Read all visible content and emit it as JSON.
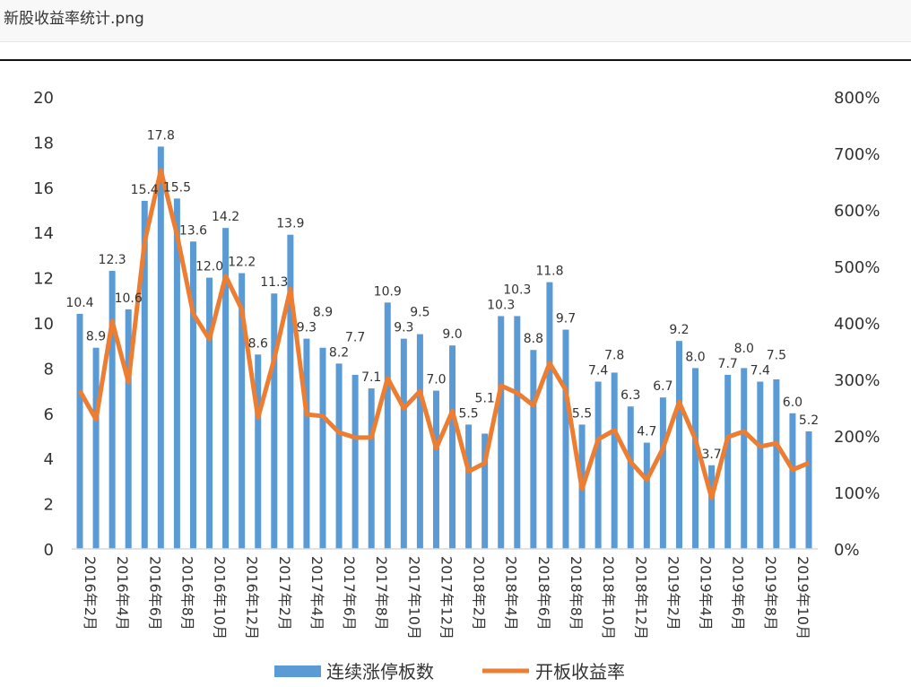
{
  "viewer": {
    "filename": "新股收益率统计.png"
  },
  "chart_data": {
    "type": "bar+line",
    "categories": [
      "2016年2月",
      "2016年3月",
      "2016年4月",
      "2016年5月",
      "2016年6月",
      "2016年7月",
      "2016年8月",
      "2016年9月",
      "2016年10月",
      "2016年11月",
      "2016年12月",
      "2017年1月",
      "2017年2月",
      "2017年3月",
      "2017年4月",
      "2017年5月",
      "2017年6月",
      "2017年7月",
      "2017年8月",
      "2017年9月",
      "2017年10月",
      "2017年11月",
      "2017年12月",
      "2018年1月",
      "2018年2月",
      "2018年3月",
      "2018年4月",
      "2018年5月",
      "2018年6月",
      "2018年7月",
      "2018年8月",
      "2018年9月",
      "2018年10月",
      "2018年11月",
      "2018年12月",
      "2019年1月",
      "2019年2月",
      "2019年3月",
      "2019年4月",
      "2019年5月",
      "2019年6月",
      "2019年7月",
      "2019年8月",
      "2019年9月",
      "2019年10月",
      "2019年11月"
    ],
    "tick_labels": [
      "2016年2月",
      "2016年4月",
      "2016年6月",
      "2016年8月",
      "2016年10月",
      "2016年12月",
      "2017年2月",
      "2017年4月",
      "2017年6月",
      "2017年8月",
      "2017年10月",
      "2017年12月",
      "2018年2月",
      "2018年4月",
      "2018年6月",
      "2018年8月",
      "2018年10月",
      "2018年12月",
      "2019年2月",
      "2019年4月",
      "2019年6月",
      "2019年8月",
      "2019年10月"
    ],
    "series": [
      {
        "name": "连续涨停板数",
        "type": "bar",
        "axis": "left",
        "color": "#5b9bd5",
        "values": [
          10.4,
          8.9,
          12.3,
          10.6,
          15.4,
          17.8,
          15.5,
          13.6,
          12.0,
          14.2,
          12.2,
          8.6,
          11.3,
          13.9,
          9.3,
          8.9,
          8.2,
          7.7,
          7.1,
          10.9,
          9.3,
          9.5,
          7.0,
          9.0,
          5.5,
          5.1,
          10.3,
          10.3,
          8.8,
          11.8,
          9.7,
          5.5,
          7.4,
          7.8,
          6.3,
          4.7,
          6.7,
          9.2,
          8.0,
          3.7,
          7.7,
          8.0,
          7.4,
          7.5,
          6.0,
          5.2
        ],
        "labels": [
          "10.4",
          "8.9",
          "12.3",
          "10.6",
          "15.4",
          "17.8",
          "15.5",
          "13.6",
          "12.0",
          "14.2",
          "12.2",
          "8.6",
          "11.3",
          "13.9",
          "9.3",
          "8.9",
          "8.2",
          "7.7",
          "7.1",
          "10.9",
          "9.3",
          "9.5",
          "7.0",
          "9.0",
          "5.5",
          "5.1",
          "10.3",
          "10.3",
          "8.8",
          "11.8",
          "9.7",
          "5.5",
          "7.4",
          "7.8",
          "6.3",
          "4.7",
          "6.7",
          "9.2",
          "8.0",
          "3.7",
          "7.7",
          "8.0",
          "7.4",
          "7.5",
          "6.0",
          "5.2"
        ]
      },
      {
        "name": "开板收益率",
        "type": "line",
        "axis": "right",
        "color": "#ed7d31",
        "values": [
          280,
          229,
          403,
          295,
          543,
          670,
          556,
          416,
          371,
          483,
          424,
          232,
          336,
          460,
          238,
          235,
          206,
          197,
          197,
          302,
          249,
          279,
          178,
          244,
          137,
          152,
          289,
          276,
          254,
          329,
          281,
          106,
          194,
          210,
          154,
          122,
          178,
          260,
          194,
          90,
          198,
          208,
          181,
          187,
          140,
          152
        ]
      }
    ],
    "left_axis": {
      "ylim": [
        0,
        20
      ],
      "ticks": [
        "0",
        "2",
        "4",
        "6",
        "8",
        "10",
        "12",
        "14",
        "16",
        "18",
        "20"
      ]
    },
    "right_axis": {
      "ylim": [
        0,
        800
      ],
      "unit": "%",
      "ticks": [
        "0%",
        "100%",
        "200%",
        "300%",
        "400%",
        "500%",
        "600%",
        "700%",
        "800%"
      ]
    },
    "grid": false,
    "legend": {
      "placement": "bottom",
      "entries": [
        "连续涨停板数",
        "开板收益率"
      ]
    }
  }
}
